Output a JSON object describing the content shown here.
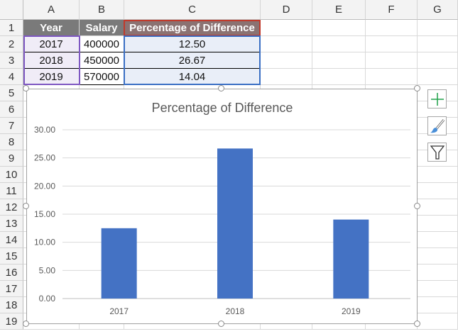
{
  "columns": [
    "A",
    "B",
    "C",
    "D",
    "E",
    "F",
    "G"
  ],
  "rows": [
    "1",
    "2",
    "3",
    "4",
    "5",
    "6",
    "7",
    "8",
    "9",
    "10",
    "11",
    "12",
    "13",
    "14",
    "15",
    "16",
    "17",
    "18",
    "19"
  ],
  "table": {
    "headers": [
      "Year",
      "Salary",
      "Percentage of Difference"
    ],
    "data": [
      [
        "2017",
        "400000",
        "12.50"
      ],
      [
        "2018",
        "450000",
        "26.67"
      ],
      [
        "2019",
        "570000",
        "14.04"
      ]
    ]
  },
  "chart_buttons": {
    "elements": "plus-icon",
    "styles": "brush-icon",
    "filters": "filter-icon"
  },
  "chart_data": {
    "type": "bar",
    "title": "Percentage of Difference",
    "categories": [
      "2017",
      "2018",
      "2019"
    ],
    "values": [
      12.5,
      26.67,
      14.04
    ],
    "ylim": [
      0,
      30
    ],
    "yticks": [
      "0.00",
      "5.00",
      "10.00",
      "15.00",
      "20.00",
      "25.00",
      "30.00"
    ],
    "grid": true,
    "bar_color": "#4472c4"
  }
}
